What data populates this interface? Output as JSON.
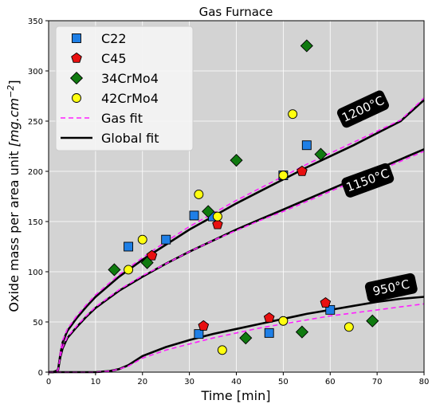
{
  "chart_data": {
    "type": "scatter",
    "title": "Gas Furnace",
    "xlabel": "Time [min]",
    "ylabel_prefix": "Oxide mass per area unit ",
    "ylabel_unit": "[mg.cm",
    "ylabel_sup": "−2",
    "ylabel_close": "]",
    "xlim": [
      0,
      80
    ],
    "ylim": [
      0,
      350
    ],
    "x_ticks": [
      0,
      10,
      20,
      30,
      40,
      50,
      60,
      70,
      80
    ],
    "y_ticks": [
      0,
      50,
      100,
      150,
      200,
      250,
      300,
      350
    ],
    "grid": true,
    "legend_position": "top-left",
    "colors": {
      "background": "#d3d3d3",
      "grid": "#ffffff",
      "c22": "#1e7fe6",
      "c45": "#e81010",
      "34crmo4": "#0f7a0f",
      "42crmo4": "#ffff10",
      "gas_fit": "#ff20ff",
      "global_fit": "#000000",
      "temp_box": "#000000"
    },
    "series": [
      {
        "name": "C22",
        "marker": "square",
        "points": [
          [
            17,
            125
          ],
          [
            25,
            132
          ],
          [
            31,
            156
          ],
          [
            35,
            155
          ],
          [
            32,
            38
          ],
          [
            47,
            39
          ],
          [
            50,
            196
          ],
          [
            55,
            226
          ],
          [
            60,
            62
          ]
        ]
      },
      {
        "name": "C45",
        "marker": "pentagon",
        "points": [
          [
            22,
            116
          ],
          [
            36,
            147
          ],
          [
            33,
            46
          ],
          [
            47,
            54
          ],
          [
            54,
            200
          ],
          [
            59,
            69
          ]
        ]
      },
      {
        "name": "34CrMo4",
        "marker": "diamond",
        "points": [
          [
            14,
            102
          ],
          [
            21,
            109
          ],
          [
            34,
            160
          ],
          [
            40,
            211
          ],
          [
            42,
            34
          ],
          [
            54,
            40
          ],
          [
            55,
            325
          ],
          [
            58,
            217
          ],
          [
            69,
            51
          ]
        ]
      },
      {
        "name": "42CrMo4",
        "marker": "circle",
        "points": [
          [
            17,
            102
          ],
          [
            20,
            132
          ],
          [
            32,
            177
          ],
          [
            36,
            155
          ],
          [
            37,
            22
          ],
          [
            50,
            51
          ],
          [
            50,
            196
          ],
          [
            52,
            257
          ],
          [
            64,
            45
          ]
        ]
      }
    ],
    "fits": [
      {
        "temperature": "1200°C",
        "gas_fit": [
          [
            0,
            0
          ],
          [
            1,
            0
          ],
          [
            2,
            2
          ],
          [
            2.5,
            20
          ],
          [
            3,
            32
          ],
          [
            4,
            43
          ],
          [
            6,
            56
          ],
          [
            8,
            67
          ],
          [
            10,
            77
          ],
          [
            15,
            97
          ],
          [
            20,
            114
          ],
          [
            25,
            130
          ],
          [
            30,
            145
          ],
          [
            35,
            158
          ],
          [
            40,
            171
          ],
          [
            45,
            183
          ],
          [
            50,
            195
          ],
          [
            55,
            207
          ],
          [
            60,
            218
          ],
          [
            65,
            229
          ],
          [
            70,
            240
          ],
          [
            75,
            251
          ],
          [
            80,
            273
          ]
        ],
        "global_fit": [
          [
            0,
            0
          ],
          [
            1,
            0
          ],
          [
            2,
            2
          ],
          [
            2.5,
            18
          ],
          [
            3,
            30
          ],
          [
            4,
            41
          ],
          [
            6,
            54
          ],
          [
            8,
            65
          ],
          [
            10,
            75
          ],
          [
            15,
            95
          ],
          [
            20,
            112
          ],
          [
            25,
            127
          ],
          [
            30,
            142
          ],
          [
            35,
            155
          ],
          [
            40,
            168
          ],
          [
            45,
            180
          ],
          [
            50,
            192
          ],
          [
            55,
            204
          ],
          [
            60,
            215
          ],
          [
            65,
            226
          ],
          [
            70,
            238
          ],
          [
            75,
            250
          ],
          [
            80,
            271
          ]
        ]
      },
      {
        "temperature": "1150°C",
        "gas_fit": [
          [
            0,
            0
          ],
          [
            1,
            0
          ],
          [
            2,
            2
          ],
          [
            2.5,
            16
          ],
          [
            3,
            25
          ],
          [
            4,
            35
          ],
          [
            6,
            46
          ],
          [
            8,
            56
          ],
          [
            10,
            65
          ],
          [
            15,
            82
          ],
          [
            20,
            96
          ],
          [
            25,
            108
          ],
          [
            30,
            120
          ],
          [
            35,
            131
          ],
          [
            40,
            141
          ],
          [
            45,
            151
          ],
          [
            50,
            160
          ],
          [
            55,
            170
          ],
          [
            60,
            180
          ],
          [
            65,
            190
          ],
          [
            70,
            200
          ],
          [
            75,
            210
          ],
          [
            80,
            220
          ]
        ],
        "global_fit": [
          [
            0,
            0
          ],
          [
            1,
            0
          ],
          [
            2,
            2
          ],
          [
            2.5,
            15
          ],
          [
            3,
            24
          ],
          [
            4,
            34
          ],
          [
            6,
            45
          ],
          [
            8,
            55
          ],
          [
            10,
            64
          ],
          [
            15,
            81
          ],
          [
            20,
            95
          ],
          [
            25,
            108
          ],
          [
            30,
            120
          ],
          [
            35,
            131
          ],
          [
            40,
            142
          ],
          [
            45,
            152
          ],
          [
            50,
            162
          ],
          [
            55,
            172
          ],
          [
            60,
            182
          ],
          [
            65,
            192
          ],
          [
            70,
            202
          ],
          [
            75,
            212
          ],
          [
            80,
            222
          ]
        ]
      },
      {
        "temperature": "950°C",
        "gas_fit": [
          [
            0,
            0
          ],
          [
            5,
            0
          ],
          [
            10,
            0
          ],
          [
            13,
            1
          ],
          [
            15,
            3
          ],
          [
            17,
            6
          ],
          [
            20,
            14
          ],
          [
            25,
            22
          ],
          [
            30,
            28
          ],
          [
            35,
            34
          ],
          [
            40,
            39
          ],
          [
            45,
            44
          ],
          [
            50,
            48
          ],
          [
            55,
            52
          ],
          [
            60,
            56
          ],
          [
            65,
            59
          ],
          [
            70,
            62
          ],
          [
            75,
            65
          ],
          [
            80,
            68
          ]
        ],
        "global_fit": [
          [
            0,
            0
          ],
          [
            5,
            0
          ],
          [
            10,
            0
          ],
          [
            13,
            1
          ],
          [
            15,
            3
          ],
          [
            17,
            7
          ],
          [
            20,
            16
          ],
          [
            25,
            25
          ],
          [
            30,
            32
          ],
          [
            35,
            38
          ],
          [
            40,
            43
          ],
          [
            45,
            48
          ],
          [
            50,
            53
          ],
          [
            55,
            58
          ],
          [
            60,
            62
          ],
          [
            65,
            66
          ],
          [
            70,
            70
          ],
          [
            75,
            73
          ],
          [
            80,
            75
          ]
        ]
      }
    ],
    "legend": [
      {
        "label": "C22",
        "kind": "square"
      },
      {
        "label": "C45",
        "kind": "pentagon"
      },
      {
        "label": "34CrMo4",
        "kind": "diamond"
      },
      {
        "label": "42CrMo4",
        "kind": "circle"
      },
      {
        "label": "Gas fit",
        "kind": "dashed"
      },
      {
        "label": "Global fit",
        "kind": "solid"
      }
    ]
  }
}
